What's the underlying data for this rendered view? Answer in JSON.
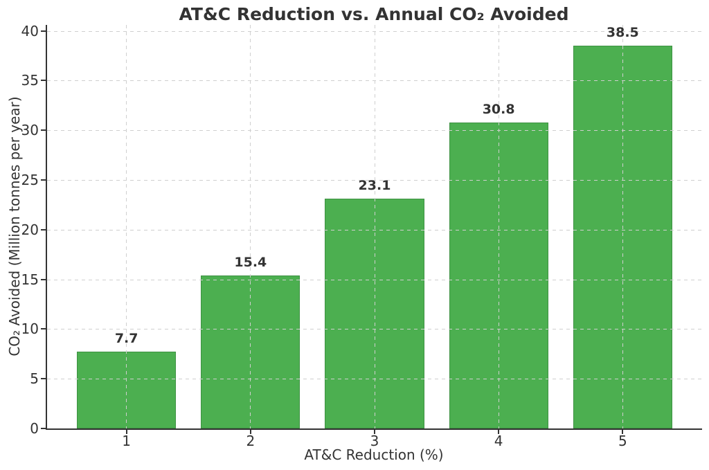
{
  "chart_data": {
    "type": "bar",
    "title": "AT&C Reduction vs. Annual CO₂ Avoided",
    "xlabel": "AT&C Reduction (%)",
    "ylabel": "CO₂ Avoided (Million tonnes per year)",
    "categories": [
      "1",
      "2",
      "3",
      "4",
      "5"
    ],
    "values": [
      7.7,
      15.4,
      23.1,
      30.8,
      38.5
    ],
    "bar_labels": [
      "7.7",
      "15.4",
      "23.1",
      "30.8",
      "38.5"
    ],
    "yticks": [
      0,
      5,
      10,
      15,
      20,
      25,
      30,
      35,
      40
    ],
    "ylim": [
      0,
      40.6
    ],
    "xlim": [
      0.36,
      5.64
    ],
    "bar_width": 0.8,
    "grid": "dashed-both-drawn-over-bars",
    "legend_position": "none",
    "colors": {
      "bar_fill": "#4CAF50",
      "bar_edge": "#3d9142",
      "grid": "#cfcfcf",
      "axis": "#333333",
      "text": "#333333"
    }
  }
}
